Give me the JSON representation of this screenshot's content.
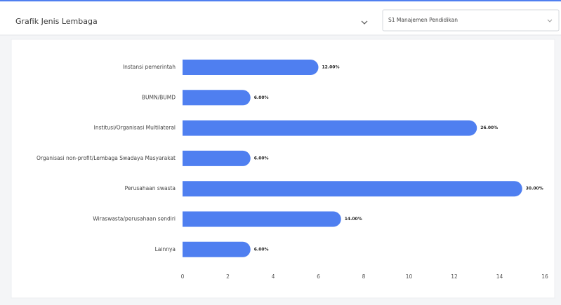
{
  "header": {
    "title": "Grafik Jenis Lembaga",
    "select": "S1 Manajemen Pendidikan"
  },
  "chart_data": {
    "type": "bar",
    "orientation": "horizontal",
    "categories": [
      "Instansi pemerintah",
      "BUMN/BUMD",
      "Institusi/Organisasi Multilateral",
      "Organisasi non-profit/Lembaga Swadaya Masyarakat",
      "Perusahaan swasta",
      "Wiraswasta/perusahaan sendiri",
      "Lainnya"
    ],
    "values": [
      6,
      3,
      13,
      3,
      15,
      7,
      3
    ],
    "value_labels": [
      "12.00%",
      "6.00%",
      "26.00%",
      "6.00%",
      "30.00%",
      "14.00%",
      "6.00%"
    ],
    "color": "#4f7ff0",
    "xlim": [
      0,
      16
    ],
    "xticks": [
      0,
      2,
      4,
      6,
      8,
      10,
      12,
      14,
      16
    ]
  }
}
